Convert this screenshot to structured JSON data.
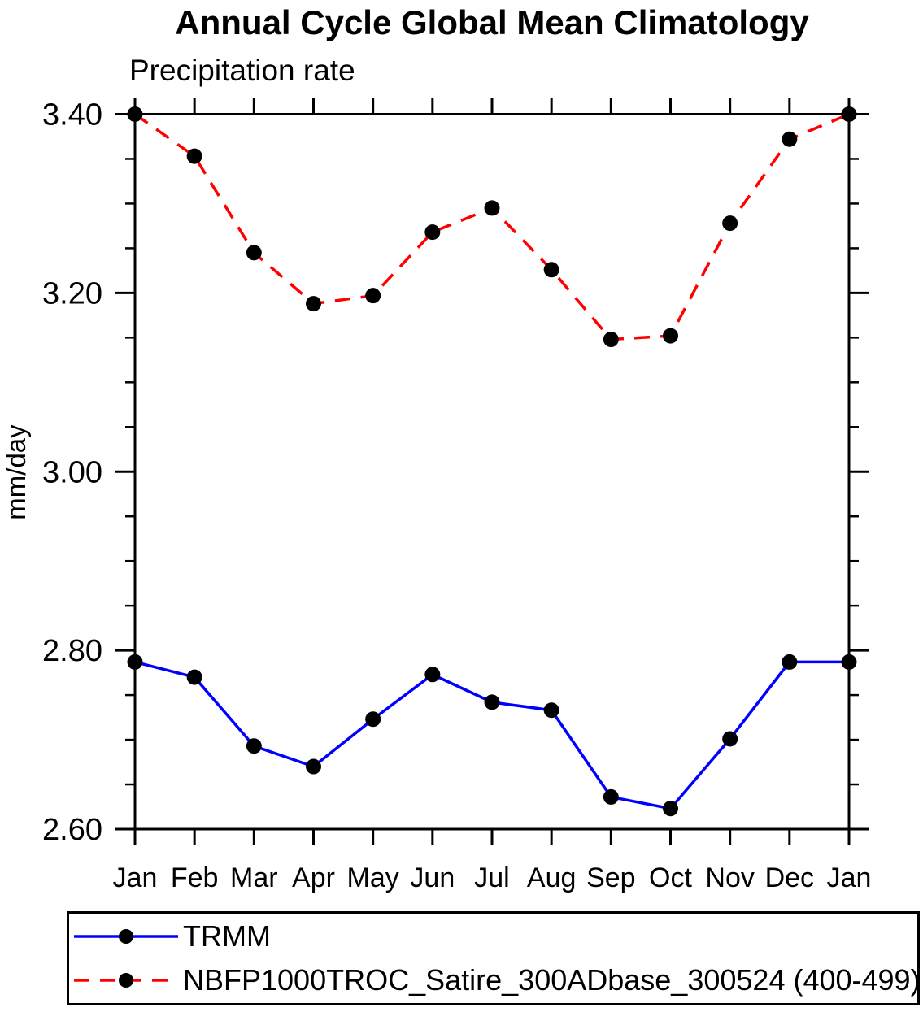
{
  "chart_data": {
    "type": "line",
    "title": "Annual Cycle Global Mean Climatology",
    "subtitle": "Precipitation rate",
    "ylabel": "mm/day",
    "xlabel": "",
    "categories": [
      "Jan",
      "Feb",
      "Mar",
      "Apr",
      "May",
      "Jun",
      "Jul",
      "Aug",
      "Sep",
      "Oct",
      "Nov",
      "Dec",
      "Jan"
    ],
    "series": [
      {
        "name": "TRMM",
        "color": "#0000ff",
        "line_style": "solid",
        "marker": "filled-circle",
        "values": [
          2.787,
          2.77,
          2.693,
          2.67,
          2.723,
          2.773,
          2.742,
          2.733,
          2.636,
          2.623,
          2.701,
          2.787,
          2.787
        ]
      },
      {
        "name": "NBFP1000TROC_Satire_300ADbase_300524 (400-499)",
        "color": "#ff0000",
        "line_style": "dashed",
        "marker": "filled-circle",
        "values": [
          3.4,
          3.353,
          3.245,
          3.188,
          3.197,
          3.268,
          3.295,
          3.226,
          3.148,
          3.152,
          3.278,
          3.372,
          3.4
        ]
      }
    ],
    "ylim": [
      2.6,
      3.4
    ],
    "y_major_ticks": [
      2.6,
      2.8,
      3.0,
      3.2,
      3.4
    ],
    "y_tick_labels": [
      "2.60",
      "2.80",
      "3.00",
      "3.20",
      "3.40"
    ],
    "y_minor_tick_step": 0.05,
    "grid": "off",
    "marker_color": "#000000",
    "axis_color": "#000000",
    "background_color": "#ffffff",
    "legend_position": "bottom"
  }
}
